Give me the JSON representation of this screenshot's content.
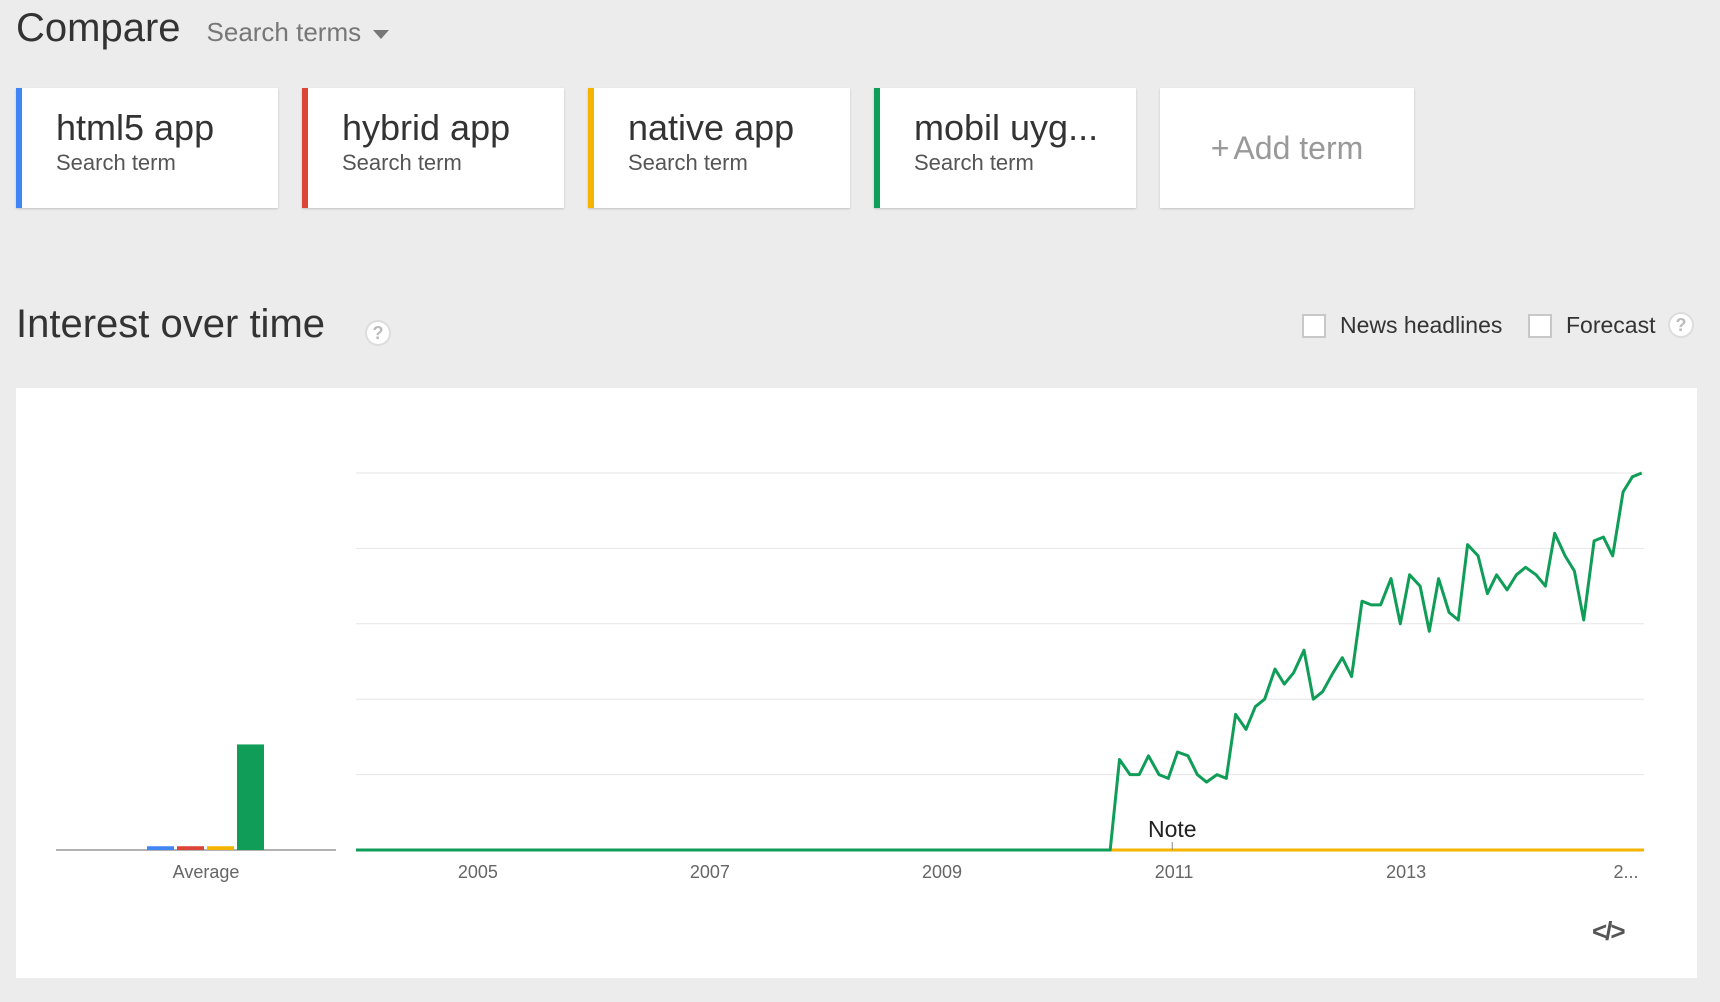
{
  "header": {
    "title": "Compare",
    "mode_label": "Search terms"
  },
  "terms": [
    {
      "name": "html5 app",
      "sub": "Search term",
      "color": "#4285f4"
    },
    {
      "name": "hybrid app",
      "sub": "Search term",
      "color": "#db4437"
    },
    {
      "name": "native app",
      "sub": "Search term",
      "color": "#f4b400"
    },
    {
      "name": "mobil uyg...",
      "sub": "Search term",
      "color": "#0f9d58"
    }
  ],
  "add_term": {
    "plus": "+",
    "label": "Add term"
  },
  "section": {
    "title": "Interest over time",
    "help": "?"
  },
  "options": {
    "news": "News headlines",
    "forecast": "Forecast",
    "help": "?"
  },
  "embed": {
    "icon": "code-embed-icon",
    "text": "</>"
  },
  "chart_data": {
    "type": "line",
    "title": "",
    "xlabel": "",
    "ylabel": "",
    "ylim": [
      0,
      100
    ],
    "grid": true,
    "x_ticks": [
      "2005",
      "2007",
      "2009",
      "2011",
      "2013",
      "2..."
    ],
    "average_label": "Average",
    "note_label": "Note",
    "note_x": 2011.0,
    "averages": [
      {
        "name": "html5 app",
        "color": "#4285f4",
        "value": 1
      },
      {
        "name": "hybrid app",
        "color": "#db4437",
        "value": 1
      },
      {
        "name": "native app",
        "color": "#f4b400",
        "value": 1
      },
      {
        "name": "mobil uyg...",
        "color": "#0f9d58",
        "value": 28
      }
    ],
    "flat_series": [
      {
        "name": "html5 app",
        "color": "#4285f4",
        "from": 2004.0,
        "to": 2015.1,
        "value": 0
      },
      {
        "name": "hybrid app",
        "color": "#db4437",
        "from": 2004.0,
        "to": 2015.1,
        "value": 0
      },
      {
        "name": "native app",
        "color": "#f4b400",
        "from": 2004.0,
        "to": 2015.1,
        "value": 0
      }
    ],
    "series": [
      {
        "name": "mobil uyg...",
        "color": "#0f9d58",
        "x": [
          2004.0,
          2010.5,
          2010.58,
          2010.67,
          2010.75,
          2010.83,
          2010.92,
          2011.0,
          2011.08,
          2011.17,
          2011.25,
          2011.33,
          2011.42,
          2011.5,
          2011.58,
          2011.67,
          2011.75,
          2011.83,
          2011.92,
          2012.0,
          2012.08,
          2012.17,
          2012.25,
          2012.33,
          2012.42,
          2012.5,
          2012.58,
          2012.67,
          2012.75,
          2012.83,
          2012.92,
          2013.0,
          2013.08,
          2013.17,
          2013.25,
          2013.33,
          2013.42,
          2013.5,
          2013.58,
          2013.67,
          2013.75,
          2013.83,
          2013.92,
          2014.0,
          2014.08,
          2014.17,
          2014.25,
          2014.33,
          2014.42,
          2014.5,
          2014.58,
          2014.67,
          2014.75,
          2014.83,
          2014.92,
          2015.0,
          2015.08
        ],
        "values": [
          0,
          0,
          24,
          20,
          20,
          25,
          20,
          19,
          26,
          25,
          20,
          18,
          20,
          19,
          36,
          32,
          38,
          40,
          48,
          44,
          47,
          53,
          40,
          42,
          47,
          51,
          46,
          66,
          65,
          65,
          72,
          60,
          73,
          70,
          58,
          72,
          63,
          61,
          81,
          78,
          68,
          73,
          69,
          73,
          75,
          73,
          70,
          84,
          78,
          74,
          61,
          82,
          83,
          78,
          95,
          99,
          100
        ]
      }
    ]
  }
}
